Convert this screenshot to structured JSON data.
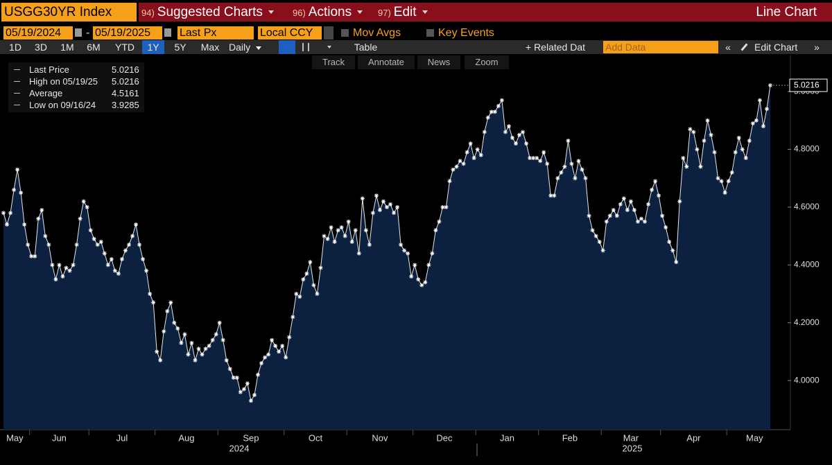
{
  "header": {
    "ticker": "USGG30YR Index",
    "menus": [
      {
        "num": "94)",
        "label": "Suggested Charts"
      },
      {
        "num": "96)",
        "label": "Actions"
      },
      {
        "num": "97)",
        "label": "Edit"
      }
    ],
    "view": "Line Chart"
  },
  "settings": {
    "start_date": "05/19/2024",
    "separator": "-",
    "end_date": "05/19/2025",
    "field": "Last Px",
    "currency": "Local CCY",
    "options": [
      "Mov Avgs",
      "Key Events"
    ]
  },
  "toolbar": {
    "ranges": [
      "1D",
      "3D",
      "1M",
      "6M",
      "YTD",
      "1Y",
      "5Y",
      "Max"
    ],
    "selected_range": "1Y",
    "frequency": "Daily",
    "table": "Table",
    "related": "+ Related Dat",
    "add_data": "Add Data",
    "collapse": "«",
    "edit_chart": "Edit Chart",
    "expand": "»"
  },
  "chart_tools": [
    "Track",
    "Annotate",
    "News",
    "Zoom"
  ],
  "chart_data": {
    "type": "line",
    "legend": [
      {
        "label": "Last Price",
        "value": 5.0216
      },
      {
        "label": "High on 05/19/25",
        "value": 5.0216
      },
      {
        "label": "Average",
        "value": 4.5161
      },
      {
        "label": "Low on 09/16/24",
        "value": 3.9285
      }
    ],
    "categories": [
      "May",
      null,
      null,
      null,
      null,
      null,
      null,
      null,
      "Jun",
      null,
      null,
      null,
      null,
      null,
      null,
      null,
      null,
      null,
      null,
      null,
      null,
      null,
      null,
      null,
      null,
      "Jul",
      null,
      null,
      null,
      null,
      null,
      null,
      null,
      null,
      null,
      null,
      null,
      null,
      null,
      null,
      null,
      null,
      null,
      null,
      "Aug",
      null,
      null,
      null,
      null,
      null,
      null,
      null,
      null,
      null,
      null,
      null,
      null,
      null,
      null,
      null,
      null,
      null,
      "Sep",
      null,
      null,
      null,
      null,
      null,
      null,
      null,
      null,
      null,
      null,
      null,
      null,
      null,
      null,
      null,
      null,
      null,
      null,
      "Oct",
      null,
      null,
      null,
      null,
      null,
      null,
      null,
      null,
      null,
      null,
      null,
      null,
      null,
      null,
      null,
      null,
      null,
      "Nov",
      null,
      null,
      null,
      null,
      null,
      null,
      null,
      null,
      null,
      null,
      null,
      null,
      null,
      null,
      null,
      null,
      null,
      null,
      "Dec",
      null,
      null,
      null,
      null,
      null,
      null,
      null,
      null,
      null,
      null,
      null,
      null,
      null,
      null,
      null,
      null,
      null,
      "Jan",
      null,
      null,
      null,
      null,
      null,
      null,
      null,
      null,
      null,
      null,
      null,
      null,
      null,
      null,
      null,
      null,
      null,
      "Feb",
      null,
      null,
      null,
      null,
      null,
      null,
      null,
      null,
      null,
      null,
      null,
      null,
      null,
      null,
      null,
      null,
      null,
      "Mar",
      null,
      null,
      null,
      null,
      null,
      null,
      null,
      null,
      null,
      null,
      null,
      null,
      null,
      null,
      null,
      null,
      "Apr",
      null,
      null,
      null,
      null,
      null,
      null,
      null,
      null,
      null,
      null,
      null,
      null,
      null,
      null,
      null,
      null,
      null,
      null,
      "May",
      null,
      null,
      null,
      null,
      null,
      null,
      null,
      null,
      null,
      null,
      null,
      null
    ],
    "years": [
      "2024",
      "2025"
    ],
    "series": [
      {
        "name": "Last Price",
        "color": "#e8e8e8",
        "fill": "#0c2140",
        "values": [
          4.58,
          4.54,
          4.58,
          4.66,
          4.73,
          4.65,
          4.54,
          4.47,
          4.43,
          4.43,
          4.56,
          4.59,
          4.5,
          4.47,
          4.4,
          4.35,
          4.4,
          4.36,
          4.39,
          4.38,
          4.4,
          4.47,
          4.56,
          4.62,
          4.6,
          4.52,
          4.49,
          4.47,
          4.48,
          4.44,
          4.4,
          4.42,
          4.38,
          4.37,
          4.42,
          4.45,
          4.47,
          4.5,
          4.54,
          4.47,
          4.42,
          4.38,
          4.3,
          4.27,
          4.1,
          4.07,
          4.17,
          4.24,
          4.27,
          4.2,
          4.18,
          4.13,
          4.16,
          4.09,
          4.13,
          4.07,
          4.11,
          4.09,
          4.11,
          4.12,
          4.14,
          4.16,
          4.2,
          4.14,
          4.07,
          4.04,
          4.01,
          4.01,
          3.96,
          3.97,
          3.99,
          3.93,
          3.95,
          4.02,
          4.06,
          4.08,
          4.09,
          4.14,
          4.12,
          4.1,
          4.12,
          4.08,
          4.15,
          4.22,
          4.3,
          4.29,
          4.35,
          4.37,
          4.41,
          4.33,
          4.3,
          4.39,
          4.5,
          4.49,
          4.53,
          4.48,
          4.52,
          4.53,
          4.5,
          4.55,
          4.48,
          4.52,
          4.44,
          4.63,
          4.52,
          4.47,
          4.58,
          4.64,
          4.59,
          4.62,
          4.6,
          4.61,
          4.58,
          4.6,
          4.47,
          4.45,
          4.44,
          4.36,
          4.4,
          4.35,
          4.33,
          4.34,
          4.4,
          4.44,
          4.52,
          4.55,
          4.6,
          4.6,
          4.69,
          4.73,
          4.74,
          4.76,
          4.75,
          4.79,
          4.82,
          4.77,
          4.8,
          4.78,
          4.86,
          4.91,
          4.93,
          4.93,
          4.95,
          4.97,
          4.86,
          4.88,
          4.84,
          4.82,
          4.85,
          4.86,
          4.82,
          4.77,
          4.77,
          4.77,
          4.76,
          4.79,
          4.75,
          4.64,
          4.64,
          4.7,
          4.72,
          4.74,
          4.83,
          4.75,
          4.7,
          4.76,
          4.73,
          4.7,
          4.57,
          4.52,
          4.5,
          4.48,
          4.45,
          4.55,
          4.57,
          4.59,
          4.57,
          4.61,
          4.63,
          4.59,
          4.62,
          4.59,
          4.55,
          4.56,
          4.55,
          4.61,
          4.66,
          4.69,
          4.64,
          4.57,
          4.53,
          4.48,
          4.45,
          4.41,
          4.62,
          4.77,
          4.74,
          4.87,
          4.86,
          4.8,
          4.74,
          4.83,
          4.9,
          4.85,
          4.79,
          4.7,
          4.69,
          4.65,
          4.69,
          4.72,
          4.79,
          4.84,
          4.8,
          4.77,
          4.83,
          4.89,
          4.9,
          4.97,
          4.88,
          4.94,
          5.0216
        ]
      }
    ],
    "ylim": [
      3.83,
      5.125
    ],
    "yticks": [
      {
        "value": 4,
        "label": "4.0000"
      },
      {
        "value": 4.2,
        "label": "4.2000"
      },
      {
        "value": 4.4,
        "label": "4.4000"
      },
      {
        "value": 4.6,
        "label": "4.6000"
      },
      {
        "value": 4.8,
        "label": "4.8000"
      },
      {
        "value": 5,
        "label": "5.0000"
      }
    ],
    "grid": false,
    "last_value_label": true
  }
}
